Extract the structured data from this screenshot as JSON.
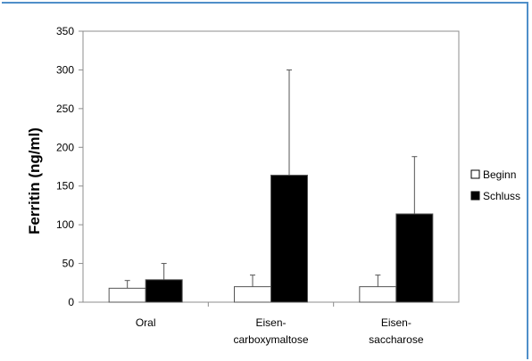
{
  "chart_data": {
    "type": "bar",
    "title": "",
    "xlabel": "",
    "ylabel": "Ferritin (ng/ml)",
    "ylim": [
      0,
      350
    ],
    "yticks": [
      0,
      50,
      100,
      150,
      200,
      250,
      300,
      350
    ],
    "grid": false,
    "legend_position": "right",
    "categories": [
      [
        "Oral"
      ],
      [
        "Eisen-",
        "carboxymaltose"
      ],
      [
        "Eisen-",
        "saccharose"
      ]
    ],
    "series": [
      {
        "name": "Beginn",
        "fill": "#ffffff",
        "values": [
          18,
          20,
          20
        ],
        "error_plus": [
          10,
          15,
          15
        ]
      },
      {
        "name": "Schluss",
        "fill": "#000000",
        "values": [
          29,
          164,
          114
        ],
        "error_plus": [
          21,
          136,
          74
        ]
      }
    ]
  }
}
